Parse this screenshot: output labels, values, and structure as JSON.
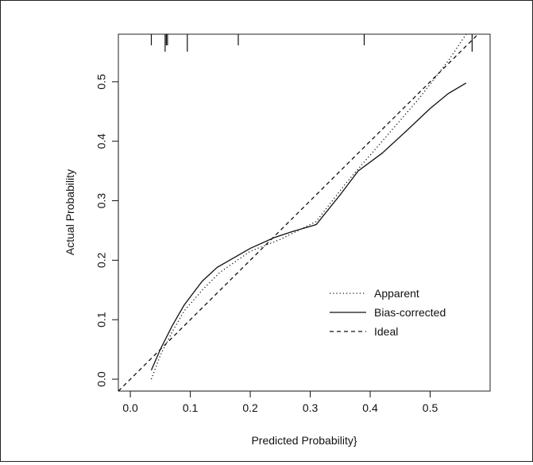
{
  "chart_data": {
    "type": "line",
    "xlabel": "Predicted Probability}",
    "ylabel": "Actual Probability",
    "xlim": [
      -0.02,
      0.6
    ],
    "ylim": [
      -0.02,
      0.58
    ],
    "x_ticks": [
      "0.0",
      "0.1",
      "0.2",
      "0.3",
      "0.4",
      "0.5"
    ],
    "y_ticks": [
      "0.0",
      "0.1",
      "0.2",
      "0.3",
      "0.4",
      "0.5"
    ],
    "grid": false,
    "legend_position": "bottom-right",
    "rug_x": [
      0.035,
      0.058,
      0.06,
      0.062,
      0.095,
      0.18,
      0.39,
      0.57
    ],
    "series": [
      {
        "name": "Apparent",
        "style": "dotted",
        "x": [
          0.035,
          0.05,
          0.07,
          0.09,
          0.12,
          0.15,
          0.2,
          0.25,
          0.31,
          0.36,
          0.42,
          0.48,
          0.53,
          0.56
        ],
        "y": [
          0.0,
          0.04,
          0.08,
          0.115,
          0.15,
          0.18,
          0.215,
          0.235,
          0.265,
          0.33,
          0.4,
          0.47,
          0.535,
          0.58
        ]
      },
      {
        "name": "Bias-corrected",
        "style": "solid",
        "x": [
          0.035,
          0.05,
          0.07,
          0.09,
          0.12,
          0.145,
          0.2,
          0.24,
          0.27,
          0.31,
          0.35,
          0.38,
          0.42,
          0.46,
          0.5,
          0.53,
          0.56
        ],
        "y": [
          0.015,
          0.05,
          0.09,
          0.125,
          0.165,
          0.188,
          0.22,
          0.238,
          0.248,
          0.26,
          0.31,
          0.35,
          0.38,
          0.417,
          0.455,
          0.48,
          0.498
        ]
      },
      {
        "name": "Ideal",
        "style": "dashed",
        "x": [
          -0.02,
          0.6
        ],
        "y": [
          -0.02,
          0.6
        ]
      }
    ]
  }
}
